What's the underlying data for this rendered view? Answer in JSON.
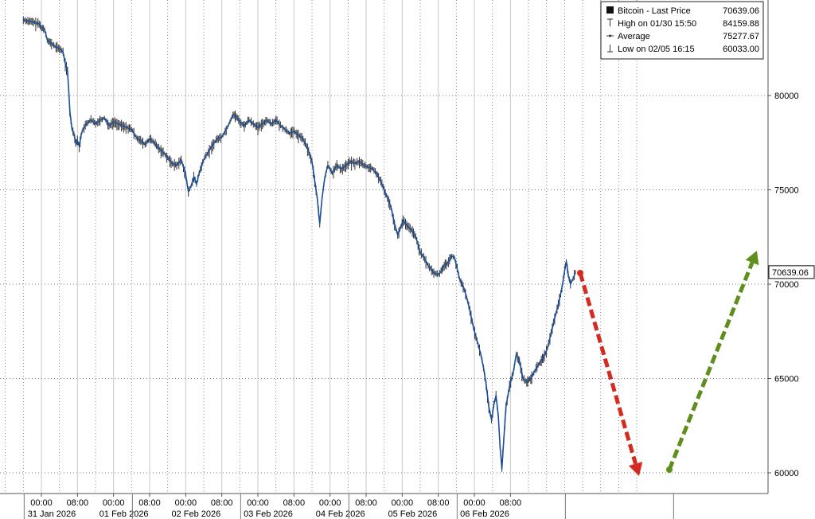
{
  "chart_data": {
    "type": "line",
    "title": "",
    "xlabel": "",
    "ylabel": "",
    "ylim": [
      59000,
      85000
    ],
    "y_ticks": [
      60000,
      65000,
      70000,
      75000,
      80000
    ],
    "y_tick_labels": [
      "60000",
      "65000",
      "70000",
      "75000",
      "80000"
    ],
    "y_axis_side": "right",
    "grid": "dotted",
    "legend_position": "top-right",
    "x_ticks": [
      {
        "time": "00:00",
        "date": "31 Jan 2026"
      },
      {
        "time": "08:00",
        "date": ""
      },
      {
        "time": "00:00",
        "date": "01 Feb 2026"
      },
      {
        "time": "08:00",
        "date": ""
      },
      {
        "time": "00:00",
        "date": "02 Feb 2026"
      },
      {
        "time": "08:00",
        "date": ""
      },
      {
        "time": "00:00",
        "date": "03 Feb 2026"
      },
      {
        "time": "08:00",
        "date": ""
      },
      {
        "time": "00:00",
        "date": "04 Feb 2026"
      },
      {
        "time": "08:00",
        "date": ""
      },
      {
        "time": "00:00",
        "date": "05 Feb 2026"
      },
      {
        "time": "08:00",
        "date": ""
      },
      {
        "time": "00:00",
        "date": "06 Feb 2026"
      },
      {
        "time": "08:00",
        "date": ""
      }
    ],
    "legend": [
      {
        "label": "Bitcoin - Last Price",
        "value": "70639.06",
        "marker": "square"
      },
      {
        "label": "High on 01/30 15:50",
        "value": "84159.88",
        "marker": "high"
      },
      {
        "label": "Average",
        "value": "75277.67",
        "marker": "avg"
      },
      {
        "label": "Low on 02/05 16:15",
        "value": "60033.00",
        "marker": "low"
      }
    ],
    "last_price_label": "70639.06",
    "series": [
      {
        "name": "Bitcoin",
        "color": "#1a4f9c",
        "points": [
          [
            -4.0,
            84000
          ],
          [
            -2.0,
            83900
          ],
          [
            -0.5,
            83800
          ],
          [
            0.0,
            83600
          ],
          [
            0.7,
            83500
          ],
          [
            1.3,
            82950
          ],
          [
            2.0,
            82800
          ],
          [
            3.0,
            82600
          ],
          [
            4.0,
            82500
          ],
          [
            4.8,
            82300
          ],
          [
            5.3,
            81700
          ],
          [
            5.8,
            81300
          ],
          [
            6.0,
            80500
          ],
          [
            6.3,
            79200
          ],
          [
            6.8,
            78200
          ],
          [
            7.2,
            78000
          ],
          [
            7.6,
            77500
          ],
          [
            8.0,
            77600
          ],
          [
            8.4,
            77300
          ],
          [
            8.8,
            77900
          ],
          [
            9.2,
            78200
          ],
          [
            10.0,
            78500
          ],
          [
            11.0,
            78700
          ],
          [
            12.0,
            78500
          ],
          [
            13.0,
            78700
          ],
          [
            14.0,
            78800
          ],
          [
            15.0,
            78400
          ],
          [
            16.0,
            78600
          ],
          [
            17.0,
            78500
          ],
          [
            18.0,
            78400
          ],
          [
            19.0,
            78300
          ],
          [
            20.0,
            78200
          ],
          [
            21.0,
            77800
          ],
          [
            22.0,
            77600
          ],
          [
            23.0,
            77400
          ],
          [
            24.0,
            77700
          ],
          [
            25.0,
            77500
          ],
          [
            26.0,
            77200
          ],
          [
            27.0,
            77000
          ],
          [
            28.0,
            76700
          ],
          [
            29.0,
            76400
          ],
          [
            30.0,
            76300
          ],
          [
            31.0,
            76600
          ],
          [
            32.0,
            75800
          ],
          [
            32.6,
            74900
          ],
          [
            33.2,
            75200
          ],
          [
            33.8,
            75700
          ],
          [
            34.4,
            75300
          ],
          [
            35.0,
            75900
          ],
          [
            36.0,
            76600
          ],
          [
            37.0,
            77000
          ],
          [
            38.0,
            77400
          ],
          [
            39.0,
            77700
          ],
          [
            40.0,
            77800
          ],
          [
            41.0,
            78200
          ],
          [
            41.8,
            78600
          ],
          [
            42.5,
            79000
          ],
          [
            43.2,
            78900
          ],
          [
            44.0,
            78600
          ],
          [
            45.0,
            78400
          ],
          [
            46.0,
            78700
          ],
          [
            47.0,
            78500
          ],
          [
            48.0,
            78300
          ],
          [
            49.0,
            78500
          ],
          [
            50.0,
            78700
          ],
          [
            51.0,
            78500
          ],
          [
            52.0,
            78700
          ],
          [
            53.0,
            78400
          ],
          [
            54.0,
            78200
          ],
          [
            55.0,
            78000
          ],
          [
            56.0,
            78100
          ],
          [
            57.0,
            77900
          ],
          [
            58.0,
            77700
          ],
          [
            59.0,
            77200
          ],
          [
            60.0,
            76500
          ],
          [
            60.6,
            75500
          ],
          [
            61.2,
            74500
          ],
          [
            61.7,
            73200
          ],
          [
            62.2,
            74500
          ],
          [
            62.8,
            75600
          ],
          [
            63.5,
            76300
          ],
          [
            64.5,
            75900
          ],
          [
            65.5,
            76300
          ],
          [
            66.5,
            76100
          ],
          [
            67.5,
            76300
          ],
          [
            68.5,
            76500
          ],
          [
            69.5,
            76400
          ],
          [
            70.5,
            76500
          ],
          [
            71.5,
            76300
          ],
          [
            72.5,
            76200
          ],
          [
            73.5,
            76100
          ],
          [
            74.5,
            75800
          ],
          [
            75.5,
            75300
          ],
          [
            76.5,
            74700
          ],
          [
            77.5,
            74100
          ],
          [
            78.3,
            73200
          ],
          [
            79.0,
            72600
          ],
          [
            79.5,
            72900
          ],
          [
            80.2,
            73400
          ],
          [
            81.0,
            73100
          ],
          [
            82.0,
            72900
          ],
          [
            83.0,
            72500
          ],
          [
            84.0,
            71700
          ],
          [
            85.0,
            71300
          ],
          [
            86.0,
            70900
          ],
          [
            87.0,
            70600
          ],
          [
            88.0,
            70500
          ],
          [
            88.6,
            70700
          ],
          [
            89.3,
            71000
          ],
          [
            90.0,
            71100
          ],
          [
            91.0,
            71500
          ],
          [
            91.6,
            71400
          ],
          [
            92.2,
            70800
          ],
          [
            92.8,
            70200
          ],
          [
            93.5,
            69900
          ],
          [
            94.3,
            69300
          ],
          [
            95.0,
            68600
          ],
          [
            95.8,
            67700
          ],
          [
            96.6,
            67000
          ],
          [
            97.4,
            66300
          ],
          [
            98.0,
            65600
          ],
          [
            98.6,
            64700
          ],
          [
            99.2,
            63500
          ],
          [
            99.8,
            62800
          ],
          [
            100.3,
            63600
          ],
          [
            100.8,
            64100
          ],
          [
            101.3,
            63000
          ],
          [
            101.7,
            61400
          ],
          [
            102.1,
            60200
          ],
          [
            102.5,
            61700
          ],
          [
            103.0,
            63500
          ],
          [
            103.8,
            64600
          ],
          [
            104.6,
            65300
          ],
          [
            105.3,
            66300
          ],
          [
            106.0,
            65900
          ],
          [
            106.8,
            65000
          ],
          [
            107.6,
            64800
          ],
          [
            108.5,
            65000
          ],
          [
            109.4,
            65400
          ],
          [
            110.4,
            65800
          ],
          [
            111.3,
            66100
          ],
          [
            112.2,
            66600
          ],
          [
            113.0,
            67400
          ],
          [
            113.8,
            68200
          ],
          [
            114.6,
            68900
          ],
          [
            115.4,
            69800
          ],
          [
            116.0,
            70700
          ],
          [
            116.4,
            71200
          ],
          [
            116.8,
            70500
          ],
          [
            117.3,
            70000
          ],
          [
            117.9,
            70300
          ],
          [
            118.4,
            70639
          ]
        ]
      }
    ]
  },
  "annotations": {
    "red_arrow_color": "#d42a20",
    "green_arrow_color": "#5e8f1c"
  }
}
